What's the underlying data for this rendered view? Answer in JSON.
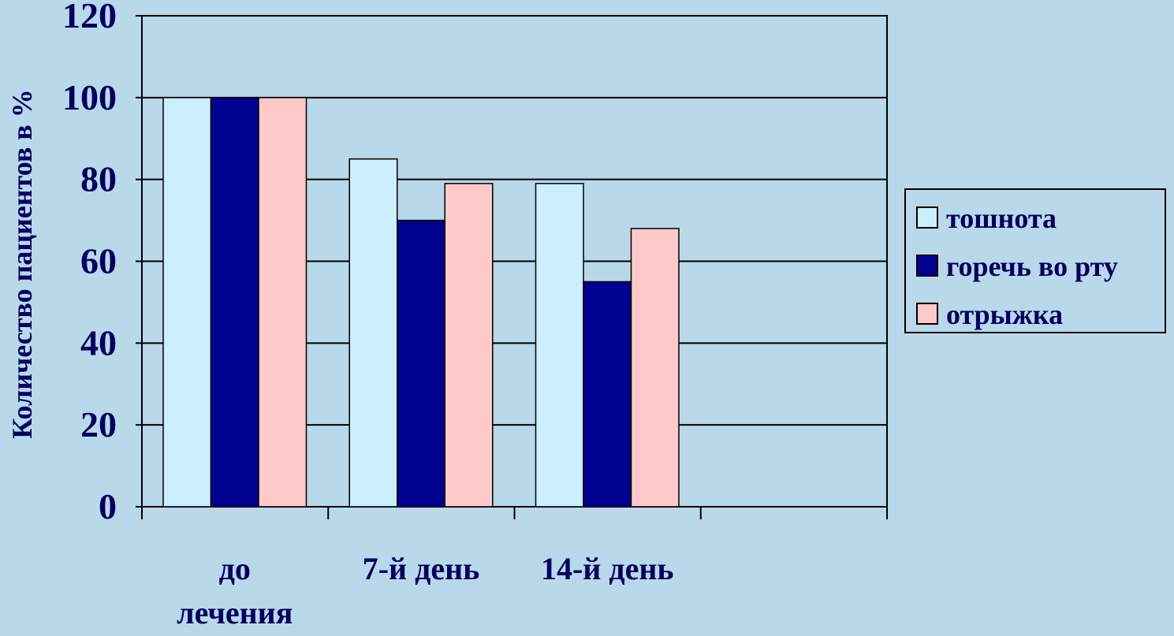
{
  "chart_data": {
    "type": "bar",
    "title": "",
    "xlabel": "",
    "ylabel": "Количество пациентов в %",
    "categories": [
      [
        "до",
        "лечения"
      ],
      [
        "7-й день"
      ],
      [
        "14-й день"
      ],
      [
        ""
      ]
    ],
    "series": [
      {
        "name": "тошнота",
        "values": [
          100,
          85,
          79,
          null
        ],
        "color": "#cceeff"
      },
      {
        "name": "горечь во рту",
        "values": [
          100,
          70,
          55,
          null
        ],
        "color": "#000090"
      },
      {
        "name": "отрыжка",
        "values": [
          100,
          79,
          68,
          null
        ],
        "color": "#ffc9c9"
      }
    ],
    "ylim": [
      0,
      120
    ],
    "yticks": [
      "0",
      "20",
      "40",
      "60",
      "80",
      "100",
      "120"
    ],
    "grid": true,
    "legend": "right",
    "colors": {
      "background": "#b9d8ea",
      "text": "#00005e",
      "axis": "#000000",
      "bar_outline": "#000000"
    }
  }
}
